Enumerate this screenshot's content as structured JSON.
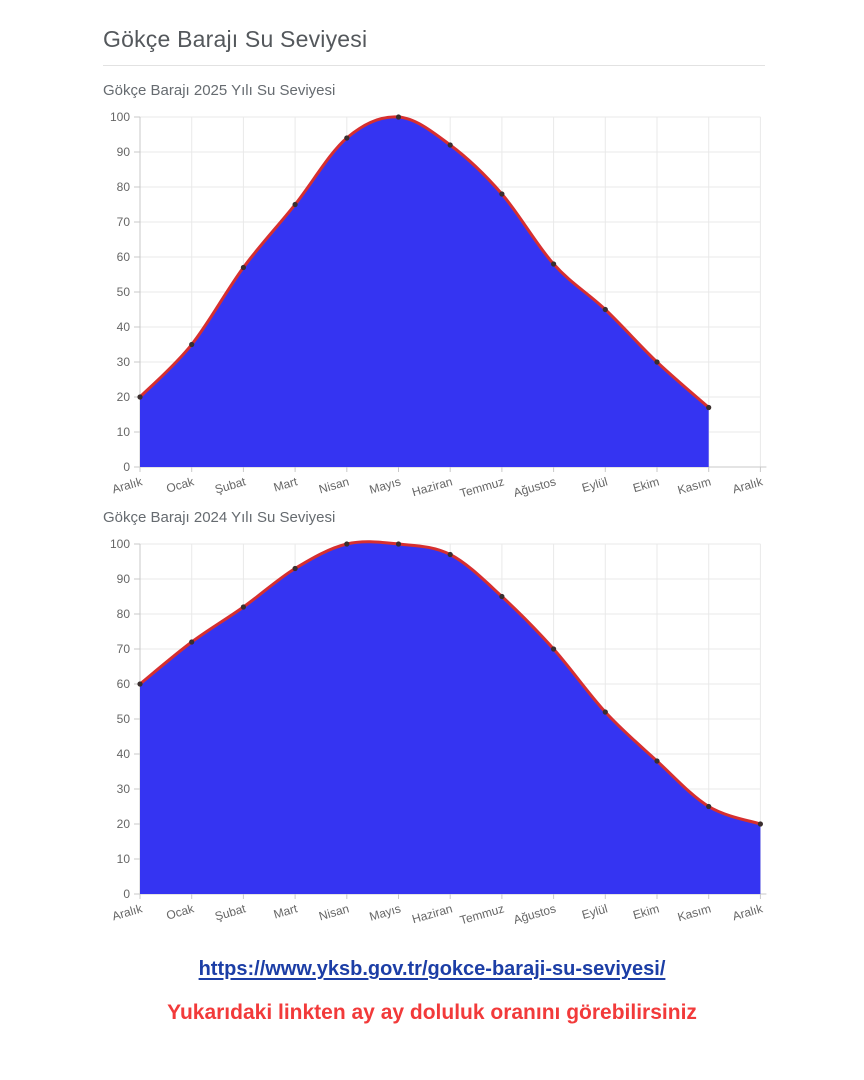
{
  "page": {
    "title": "Gökçe Barajı Su Seviyesi",
    "link": {
      "text": "https://www.yksb.gov.tr/gokce-baraji-su-seviyesi/"
    },
    "caption": "Yukarıdaki linkten ay ay doluluk oranını görebilirsiniz"
  },
  "colors": {
    "area_fill": "#3534f2",
    "line": "#d62f2f",
    "point": "#3a2e2e",
    "grid": "#e9e9e9",
    "axis": "#c9c9c9",
    "tick_text": "#666666",
    "chart_title": "#666b70",
    "page_title": "#54585c",
    "link": "#1c3ea6",
    "caption": "#f23a3a"
  },
  "chart_data": [
    {
      "type": "area",
      "title": "Gökçe Barajı 2025 Yılı Su Seviyesi",
      "categories": [
        "Aralık",
        "Ocak",
        "Şubat",
        "Mart",
        "Nisan",
        "Mayıs",
        "Haziran",
        "Temmuz",
        "Ağustos",
        "Eylül",
        "Ekim",
        "Kasım",
        "Aralık"
      ],
      "values": [
        20,
        35,
        57,
        75,
        94,
        100,
        92,
        78,
        58,
        45,
        30,
        17
      ],
      "ylabel": "",
      "xlabel": "",
      "ylim": [
        0,
        100
      ],
      "yticks": [
        0,
        10,
        20,
        30,
        40,
        50,
        60,
        70,
        80,
        90,
        100
      ],
      "grid": true,
      "legend": false,
      "smooth": true,
      "note": "last category Aralık has no data point"
    },
    {
      "type": "area",
      "title": "Gökçe Barajı 2024 Yılı Su Seviyesi",
      "categories": [
        "Aralık",
        "Ocak",
        "Şubat",
        "Mart",
        "Nisan",
        "Mayıs",
        "Haziran",
        "Temmuz",
        "Ağustos",
        "Eylül",
        "Ekim",
        "Kasım",
        "Aralık"
      ],
      "values": [
        60,
        72,
        82,
        93,
        100,
        100,
        97,
        85,
        70,
        52,
        38,
        25,
        20
      ],
      "ylabel": "",
      "xlabel": "",
      "ylim": [
        0,
        100
      ],
      "yticks": [
        0,
        10,
        20,
        30,
        40,
        50,
        60,
        70,
        80,
        90,
        100
      ],
      "grid": true,
      "legend": false,
      "smooth": true
    }
  ]
}
